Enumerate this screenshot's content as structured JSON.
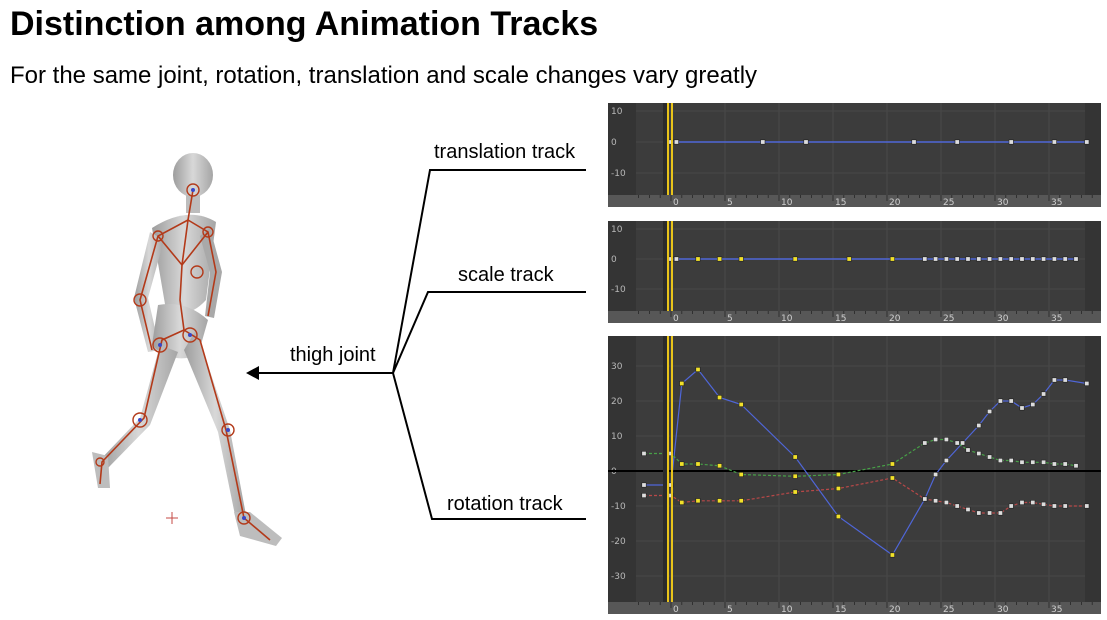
{
  "slide": {
    "title": "Distinction among Animation Tracks",
    "subtitle": "For the same joint, rotation, translation and scale changes vary greatly"
  },
  "labels": {
    "translation": "translation track",
    "scale": "scale track",
    "rotation": "rotation track",
    "joint": "thigh joint"
  },
  "colors": {
    "panel_bg": "#3c3c3c",
    "ruler_bg": "#575757",
    "playhead": "#e9c41a",
    "curve_blue": "#4f66d8",
    "curve_red": "#b84848",
    "curve_green": "#47a047",
    "key_selected": "#f2e12a",
    "key_normal": "#dddddd"
  },
  "panels": [
    {
      "id": "translation",
      "y_ticks": [
        "10",
        "0",
        "-10"
      ],
      "ruler_ticks": [
        "0",
        "5",
        "10",
        "15",
        "20",
        "25",
        "30",
        "35"
      ]
    },
    {
      "id": "scale",
      "y_ticks": [
        "10",
        "0",
        "-10"
      ],
      "ruler_ticks": [
        "0",
        "5",
        "10",
        "15",
        "20",
        "25",
        "30",
        "35"
      ]
    },
    {
      "id": "rotation",
      "y_ticks": [
        "30",
        "20",
        "10",
        "0",
        "-10",
        "-20",
        "-30"
      ],
      "ruler_ticks": [
        "0",
        "5",
        "10",
        "15",
        "20",
        "25",
        "30",
        "35"
      ]
    }
  ],
  "chart_data": [
    {
      "type": "line",
      "title": "translation track",
      "ylim": [
        -10,
        10
      ],
      "xlim": [
        -3,
        39
      ],
      "series": [
        {
          "color": "#4f66d8",
          "x": [
            0,
            0.5,
            8.5,
            12.5,
            22.5,
            26.5,
            31.5,
            35.5,
            38.5
          ],
          "y": [
            0,
            0,
            0,
            0,
            0,
            0,
            0,
            0,
            0
          ]
        }
      ]
    },
    {
      "type": "line",
      "title": "scale track",
      "ylim": [
        -10,
        10
      ],
      "xlim": [
        -3,
        39
      ],
      "series": [
        {
          "color": "#4f66d8",
          "x": [
            0,
            0.5,
            2.5,
            4.5,
            6.5,
            11.5,
            16.5,
            20.5,
            23.5,
            24.5,
            25.5,
            26.5,
            27.5,
            28.5,
            29.5,
            30.5,
            31.5,
            32.5,
            33.5,
            34.5,
            35.5,
            36.5,
            37.5
          ],
          "y": [
            0,
            0,
            0,
            0,
            0,
            0,
            0,
            0,
            0,
            0,
            0,
            0,
            0,
            0,
            0,
            0,
            0,
            0,
            0,
            0,
            0,
            0,
            0
          ]
        }
      ]
    },
    {
      "type": "line",
      "title": "rotation track",
      "ylim": [
        -30,
        30
      ],
      "xlim": [
        -3,
        39
      ],
      "series": [
        {
          "color": "#4f66d8",
          "x": [
            -2.5,
            0,
            1,
            2.5,
            4.5,
            6.5,
            11.5,
            15.5,
            20.5,
            23.5,
            24.5,
            25.5,
            27,
            28.5,
            29.5,
            30.5,
            31.5,
            32.5,
            33.5,
            34.5,
            35.5,
            36.5,
            38.5
          ],
          "y": [
            -4,
            -4,
            25,
            29,
            21,
            19,
            4,
            -13,
            -24,
            -8,
            -1,
            3,
            8,
            13,
            17,
            20,
            20,
            18,
            19,
            22,
            26,
            26,
            25
          ]
        },
        {
          "color": "#47a047",
          "x": [
            -2.5,
            0,
            1,
            2.5,
            4.5,
            6.5,
            11.5,
            15.5,
            20.5,
            23.5,
            24.5,
            25.5,
            26.5,
            27.5,
            28.5,
            29.5,
            30.5,
            31.5,
            32.5,
            33.5,
            34.5,
            35.5,
            36.5,
            37.5
          ],
          "y": [
            5,
            5,
            2,
            2,
            1.5,
            -1,
            -1.5,
            -1,
            2,
            8,
            9,
            9,
            8,
            6,
            5,
            4,
            3,
            3,
            2.5,
            2.5,
            2.5,
            2,
            2,
            1.5
          ]
        },
        {
          "color": "#b84848",
          "x": [
            -2.5,
            0,
            1,
            2.5,
            4.5,
            6.5,
            11.5,
            15.5,
            20.5,
            23.5,
            24.5,
            25.5,
            26.5,
            27.5,
            28.5,
            29.5,
            30.5,
            31.5,
            32.5,
            33.5,
            34.5,
            35.5,
            36.5,
            38.5
          ],
          "y": [
            -7,
            -7,
            -9,
            -8.5,
            -8.5,
            -8.5,
            -6,
            -5,
            -2,
            -8,
            -8.5,
            -9,
            -10,
            -11,
            -12,
            -12,
            -12,
            -10,
            -9,
            -9,
            -9.5,
            -10,
            -10,
            -10
          ]
        }
      ]
    }
  ]
}
